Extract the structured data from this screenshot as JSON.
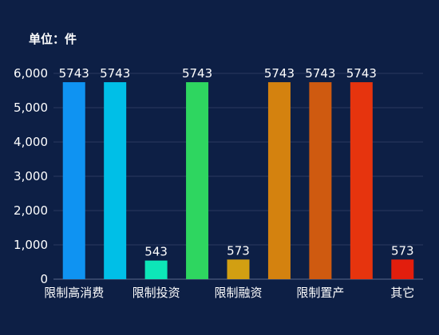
{
  "unit_label": "单位：件",
  "chart_data": {
    "type": "bar",
    "title": "",
    "xlabel": "",
    "ylabel": "",
    "ylim": [
      0,
      6000
    ],
    "yticks": [
      0,
      1000,
      2000,
      3000,
      4000,
      5000,
      6000
    ],
    "ytick_labels": [
      "0",
      "1,000",
      "2,000",
      "3,000",
      "4,000",
      "5,000",
      "6,000"
    ],
    "grid": true,
    "categories": [
      "限制高消费",
      "",
      "限制投资",
      "",
      "限制融资",
      "",
      "限制置产",
      "",
      "其它"
    ],
    "values": [
      5743,
      5743,
      543,
      5743,
      573,
      5743,
      5743,
      5743,
      573
    ],
    "colors": [
      "#0f93f2",
      "#00bfe7",
      "#0de6b8",
      "#2ed660",
      "#d29f12",
      "#d4820f",
      "#cf5a10",
      "#e6340e",
      "#e21e0d"
    ]
  }
}
